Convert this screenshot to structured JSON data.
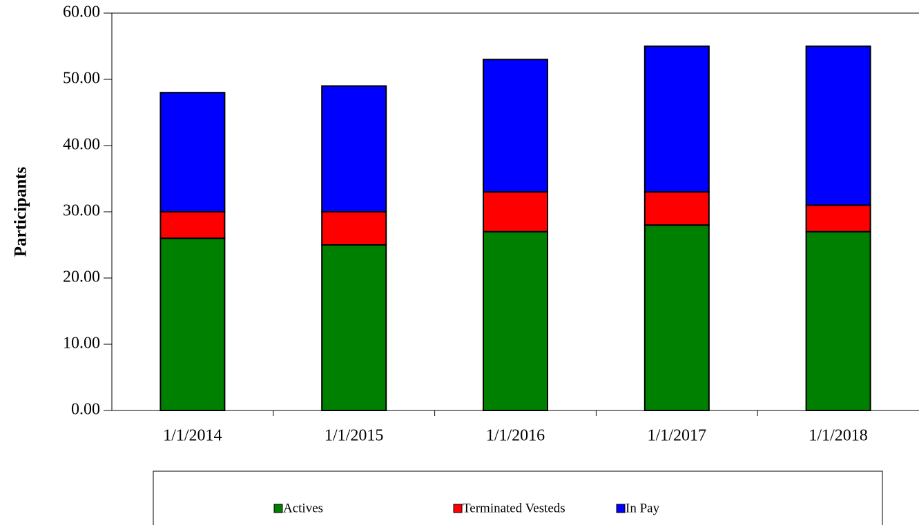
{
  "chart_data": {
    "type": "stacked_bar",
    "y_label": "Participants",
    "categories": [
      "1/1/2014",
      "1/1/2015",
      "1/1/2016",
      "1/1/2017",
      "1/1/2018"
    ],
    "series": [
      {
        "name": "Actives",
        "color": "#008000",
        "values": [
          26,
          25,
          27,
          28,
          27
        ]
      },
      {
        "name": "Terminated Vesteds",
        "color": "#ff0000",
        "values": [
          4,
          5,
          6,
          5,
          4
        ]
      },
      {
        "name": "In Pay",
        "color": "#0000ff",
        "values": [
          18,
          19,
          20,
          22,
          24
        ]
      }
    ],
    "ylim": [
      0,
      60
    ],
    "yticks": [
      {
        "value": 0,
        "label": "0.00"
      },
      {
        "value": 10,
        "label": "10.00"
      },
      {
        "value": 20,
        "label": "20.00"
      },
      {
        "value": 30,
        "label": "30.00"
      },
      {
        "value": 40,
        "label": "40.00"
      },
      {
        "value": 50,
        "label": "50.00"
      },
      {
        "value": 60,
        "label": "60.00"
      }
    ],
    "legend": "bottom"
  }
}
